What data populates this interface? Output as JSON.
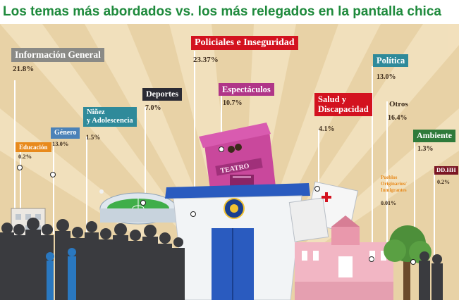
{
  "title": "Los temas más abordados vs. los más relegados en la pantalla chica",
  "colors": {
    "title": "#1e8a3c",
    "background": "#e8d2a6",
    "rays": "#f3e3c0",
    "informacion_general": "#8a8a86",
    "educacion": "#e88a1c",
    "genero": "#4b82b8",
    "ninez": "#2f8a9a",
    "deportes": "#2b2b34",
    "policiales": "#d3121f",
    "espectaculos": "#b03588",
    "salud": "#d3121f",
    "politica": "#2f8a9a",
    "ambiente": "#2f7a3a",
    "ddhh": "#7a1624"
  },
  "topics": [
    {
      "key": "informacion_general",
      "label": "Información General",
      "pct": "21.8%"
    },
    {
      "key": "educacion",
      "label": "Educación",
      "pct": "0.2%"
    },
    {
      "key": "genero",
      "label": "Género",
      "pct": "13.0%"
    },
    {
      "key": "ninez",
      "label_line1": "Niñez",
      "label_line2": "y Adolescencia",
      "pct": "1.5%"
    },
    {
      "key": "deportes",
      "label": "Deportes",
      "pct": "7.0%"
    },
    {
      "key": "policiales",
      "label": "Policiales e Inseguridad",
      "pct": "23.37%"
    },
    {
      "key": "espectaculos",
      "label": "Espectáculos",
      "pct": "10.7%"
    },
    {
      "key": "salud",
      "label_line1": "Salud y",
      "label_line2": "Discapacidad",
      "pct": "4.1%"
    },
    {
      "key": "politica",
      "label": "Política",
      "pct": "13.0%"
    },
    {
      "key": "otros",
      "label": "Otros",
      "pct": "16.4%"
    },
    {
      "key": "ambiente",
      "label": "Ambiente",
      "pct": "1.3%"
    },
    {
      "key": "pueblos",
      "label_line1": "Pueblos",
      "label_line2": "Originarios/",
      "label_line3": "Inmigrantes",
      "pct": "0.01%"
    },
    {
      "key": "ddhh",
      "label": "DD.HH",
      "pct": "0.2%"
    }
  ],
  "scene": {
    "theater_sign": "TEATRO",
    "icons": [
      "crowd-silhouette",
      "stadium-illustration",
      "police-station-illustration",
      "theater-illustration",
      "hospital-illustration",
      "casa-rosada-illustration",
      "tree-illustration",
      "theater-masks-icon",
      "police-badge-icon"
    ]
  }
}
